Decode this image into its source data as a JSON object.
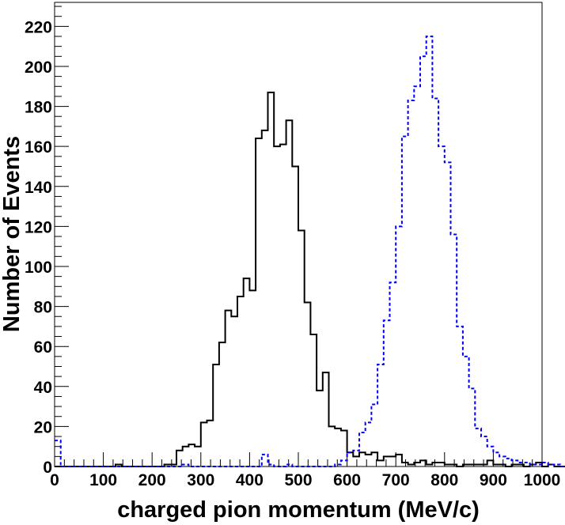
{
  "chart_data": {
    "type": "histogram",
    "xlabel": "charged pion momentum (MeV/c)",
    "ylabel": "Number of Events",
    "xlim": [
      0,
      1000
    ],
    "ylim": [
      0,
      232
    ],
    "bin_width": 12.5,
    "xticks": [
      0,
      100,
      200,
      300,
      400,
      500,
      600,
      700,
      800,
      900,
      1000
    ],
    "yticks": [
      0,
      20,
      40,
      60,
      80,
      100,
      120,
      140,
      160,
      180,
      200,
      220
    ],
    "grid": false,
    "legend": false,
    "series": [
      {
        "color": "#000000",
        "line_style": "solid",
        "values": [
          0,
          0,
          0,
          0,
          0,
          0,
          0,
          0,
          0,
          0,
          1,
          0,
          0,
          0,
          0,
          0,
          0,
          0,
          1,
          1,
          8,
          10,
          11,
          10,
          22,
          23,
          51,
          62,
          78,
          75,
          85,
          94,
          88,
          164,
          168,
          187,
          160,
          161,
          173,
          150,
          118,
          82,
          66,
          38,
          47,
          20,
          19,
          18,
          7,
          5,
          7,
          6,
          7,
          3,
          5,
          5,
          6,
          2,
          1,
          2,
          3,
          1,
          2,
          2,
          1,
          1,
          0,
          1,
          1,
          1,
          1,
          3,
          1,
          1,
          0,
          1,
          1,
          0,
          1,
          2,
          0,
          1,
          0,
          0,
          0,
          0,
          0,
          0,
          0,
          0
        ]
      },
      {
        "color": "#0000ff",
        "line_style": "dashed",
        "values": [
          13,
          0,
          0,
          0,
          0,
          0,
          0,
          0,
          0,
          0,
          0,
          0,
          0,
          0,
          0,
          0,
          0,
          0,
          0,
          0,
          0,
          1,
          0,
          0,
          0,
          0,
          0,
          0,
          0,
          0,
          0,
          0,
          0,
          0,
          6,
          1,
          0,
          0,
          1,
          0,
          0,
          0,
          0,
          0,
          0,
          0,
          1,
          3,
          7,
          8,
          17,
          22,
          31,
          51,
          73,
          92,
          120,
          165,
          183,
          190,
          205,
          215,
          184,
          160,
          152,
          116,
          70,
          55,
          39,
          19,
          15,
          10,
          7,
          5,
          4,
          3,
          2,
          2,
          1,
          1,
          2,
          1,
          1,
          0,
          1,
          1,
          0,
          1,
          0,
          0
        ]
      }
    ]
  }
}
